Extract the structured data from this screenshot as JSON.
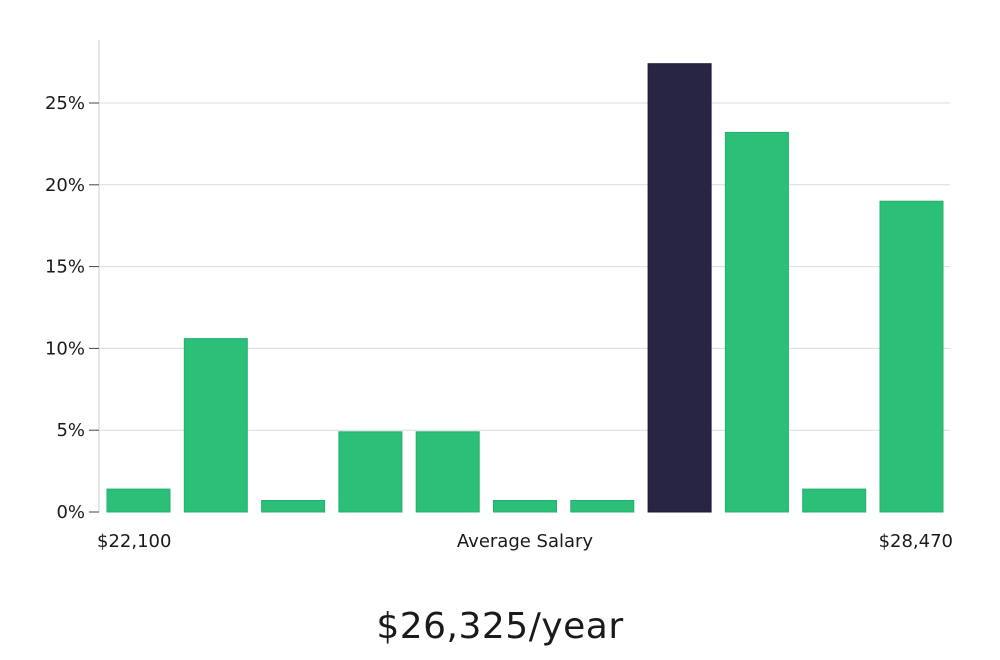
{
  "chart_data": {
    "type": "bar",
    "xlabel": "Average Salary",
    "x_min_label": "$22,100",
    "x_max_label": "$28,470",
    "ylim": [
      0,
      28
    ],
    "y_ticks": [
      0,
      5,
      10,
      15,
      20,
      25
    ],
    "y_tick_labels": [
      "0%",
      "5%",
      "10%",
      "15%",
      "20%",
      "25%"
    ],
    "values": [
      1.4,
      10.6,
      0.7,
      4.9,
      4.9,
      0.7,
      0.7,
      27.4,
      23.2,
      1.4,
      19.0
    ],
    "highlight_index": 7,
    "grid": true,
    "colors": {
      "bar": "#2bbf78",
      "highlight": "#272444",
      "grid": "#dcdcdc",
      "axis": "#cccccc"
    }
  },
  "headline": "$26,325/year"
}
